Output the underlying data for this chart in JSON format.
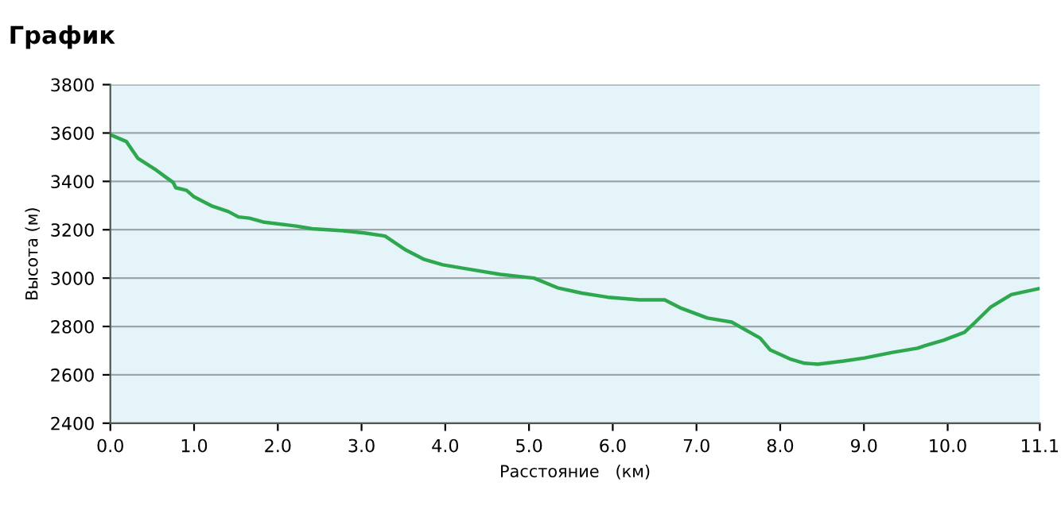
{
  "chart_data": {
    "type": "line",
    "title": "График",
    "xlabel": "Расстояние   (км)",
    "ylabel": "Высота (м)",
    "x": [
      0,
      0.19,
      0.33,
      0.53,
      0.66,
      0.75,
      0.78,
      0.91,
      1.0,
      1.22,
      1.41,
      1.53,
      1.66,
      1.84,
      2.22,
      2.41,
      2.78,
      3.03,
      3.28,
      3.53,
      3.75,
      3.97,
      4.28,
      4.66,
      5.06,
      5.34,
      5.63,
      5.94,
      6.32,
      6.62,
      6.82,
      7.13,
      7.42,
      7.76,
      7.88,
      8.13,
      8.29,
      8.45,
      8.76,
      9.01,
      9.33,
      9.64,
      9.73,
      9.95,
      10.2,
      10.33,
      10.51,
      10.76,
      11.08
    ],
    "series": [
      {
        "color": "#2ea84e",
        "values": [
          3593,
          3565,
          3495,
          3451,
          3418,
          3396,
          3374,
          3363,
          3336,
          3297,
          3275,
          3253,
          3248,
          3231,
          3215,
          3204,
          3196,
          3187,
          3174,
          3116,
          3077,
          3055,
          3037,
          3015,
          3000,
          2960,
          2938,
          2921,
          2910,
          2910,
          2875,
          2835,
          2818,
          2752,
          2703,
          2664,
          2648,
          2644,
          2657,
          2670,
          2692,
          2710,
          2721,
          2743,
          2776,
          2818,
          2879,
          2932,
          2956
        ]
      }
    ],
    "xlim": [
      0,
      11.1
    ],
    "ylim": [
      2400,
      3800
    ],
    "xticks": [
      {
        "value": 0,
        "label": "0.0"
      },
      {
        "value": 1,
        "label": "1.0"
      },
      {
        "value": 2,
        "label": "2.0"
      },
      {
        "value": 3,
        "label": "3.0"
      },
      {
        "value": 4,
        "label": "4.0"
      },
      {
        "value": 5,
        "label": "5.0"
      },
      {
        "value": 6,
        "label": "6.0"
      },
      {
        "value": 7,
        "label": "7.0"
      },
      {
        "value": 8,
        "label": "8.0"
      },
      {
        "value": 9,
        "label": "9.0"
      },
      {
        "value": 10,
        "label": "10.0"
      },
      {
        "value": 11.1,
        "label": "11.1"
      }
    ],
    "yticks": [
      2400,
      2600,
      2800,
      3000,
      3200,
      3400,
      3600,
      3800
    ],
    "grid": "y",
    "marker": "none",
    "line_style": "solid"
  }
}
